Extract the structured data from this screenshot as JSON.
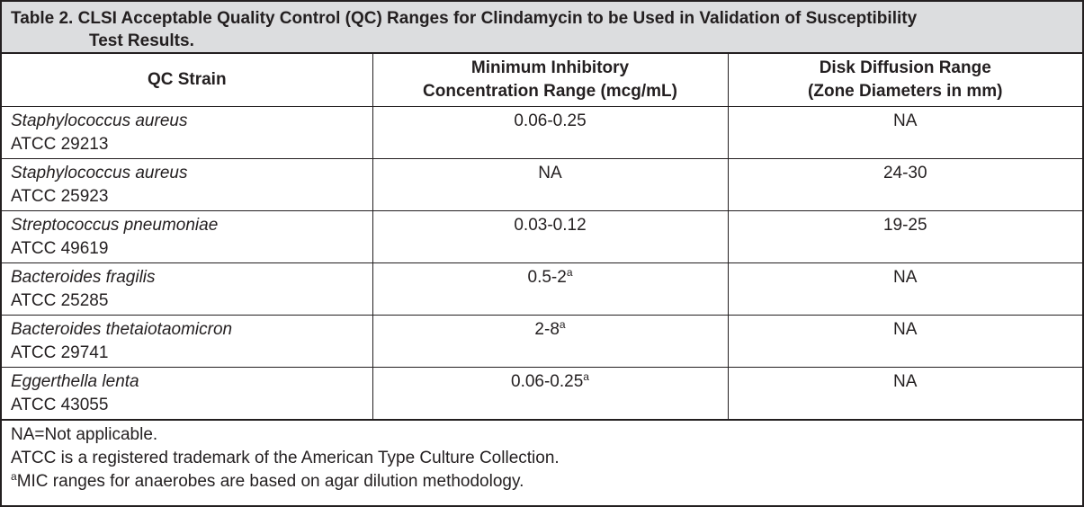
{
  "table": {
    "title_line1": "Table 2. CLSI Acceptable Quality Control (QC) Ranges for Clindamycin to be Used in Validation of Susceptibility",
    "title_line2": "Test Results.",
    "headers": {
      "strain": "QC Strain",
      "mic_line1": "Minimum Inhibitory",
      "mic_line2": "Concentration Range (mcg/mL)",
      "disk_line1": "Disk Diffusion Range",
      "disk_line2": "(Zone Diameters in mm)"
    },
    "rows": [
      {
        "organism": "Staphylococcus aureus",
        "atcc": "ATCC 29213",
        "mic": "0.06-0.25",
        "mic_sup": "",
        "disk": "NA"
      },
      {
        "organism": "Staphylococcus aureus",
        "atcc": "ATCC 25923",
        "mic": "NA",
        "mic_sup": "",
        "disk": "24-30"
      },
      {
        "organism": "Streptococcus pneumoniae",
        "atcc": "ATCC 49619",
        "mic": "0.03-0.12",
        "mic_sup": "",
        "disk": "19-25"
      },
      {
        "organism": "Bacteroides fragilis",
        "atcc": "ATCC 25285",
        "mic": "0.5-2",
        "mic_sup": "a",
        "disk": "NA"
      },
      {
        "organism": "Bacteroides thetaiotaomicron",
        "atcc": "ATCC 29741",
        "mic": "2-8",
        "mic_sup": "a",
        "disk": "NA"
      },
      {
        "organism": "Eggerthella lenta",
        "atcc": "ATCC 43055",
        "mic": "0.06-0.25",
        "mic_sup": "a",
        "disk": "NA"
      }
    ],
    "footnotes": {
      "na": "NA=Not applicable.",
      "atcc": "ATCC is a registered trademark of the American Type Culture Collection.",
      "anaerobe_marker": "a",
      "anaerobe": "MIC ranges for anaerobes are based on agar dilution methodology."
    }
  }
}
